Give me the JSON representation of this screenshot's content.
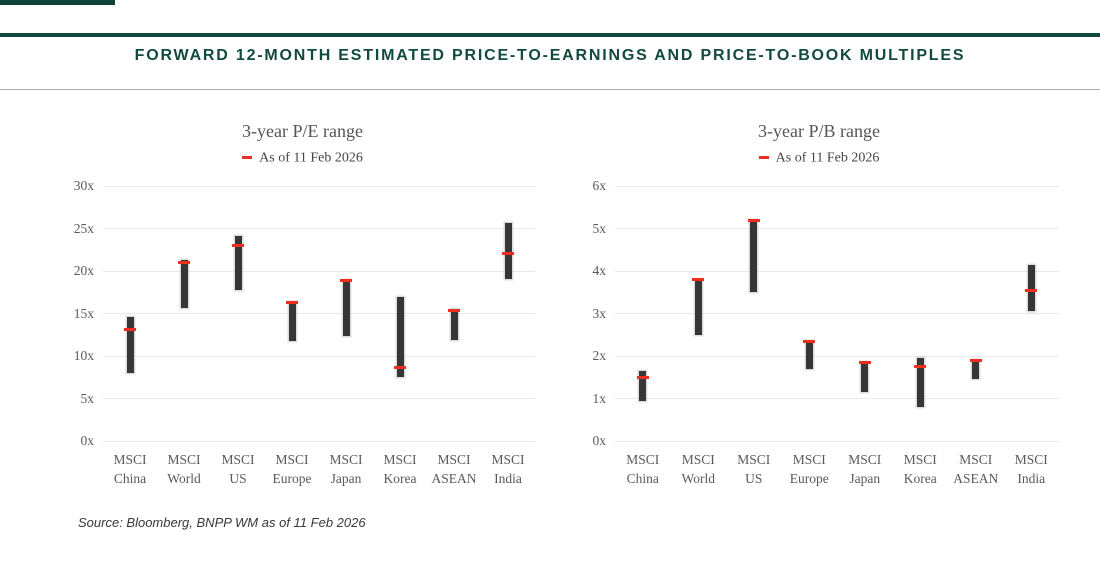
{
  "page": {
    "header_title": "FORWARD 12-MONTH ESTIMATED PRICE-TO-EARNINGS AND PRICE-TO-BOOK MULTIPLES",
    "source_note": "Source: Bloomberg, BNPP WM as of 11 Feb 2026",
    "accent_color": "#124a40",
    "marker_color": "#ee2e20",
    "bar_color": "#363636",
    "gridline_color": "#e8e8e8"
  },
  "chart_data": [
    {
      "type": "range-bar",
      "title": "3-year P/E range",
      "legend": {
        "label": "As of 11 Feb 2026",
        "marker_color": "#ee2e20",
        "position": "top"
      },
      "categories": [
        "MSCI China",
        "MSCI World",
        "MSCI US",
        "MSCI Europe",
        "MSCI Japan",
        "MSCI Korea",
        "MSCI ASEAN",
        "MSCI India"
      ],
      "ylim": [
        0,
        30
      ],
      "ytick_labels": [
        "0x",
        "5x",
        "10x",
        "15x",
        "20x",
        "25x",
        "30x"
      ],
      "grid": true,
      "range_low": [
        8.0,
        15.7,
        17.8,
        11.8,
        12.4,
        7.5,
        11.9,
        19.1
      ],
      "range_high": [
        14.6,
        21.3,
        24.1,
        16.4,
        19.0,
        16.9,
        15.5,
        25.7
      ],
      "as_of": [
        13.1,
        21.0,
        23.0,
        16.3,
        18.9,
        8.7,
        15.4,
        22.1
      ]
    },
    {
      "type": "range-bar",
      "title": "3-year P/B range",
      "legend": {
        "label": "As of 11 Feb 2026",
        "marker_color": "#ee2e20",
        "position": "top"
      },
      "categories": [
        "MSCI China",
        "MSCI World",
        "MSCI US",
        "MSCI Europe",
        "MSCI Japan",
        "MSCI Korea",
        "MSCI ASEAN",
        "MSCI India"
      ],
      "ylim": [
        0,
        6
      ],
      "ytick_labels": [
        "0x",
        "1x",
        "2x",
        "3x",
        "4x",
        "5x",
        "6x"
      ],
      "grid": true,
      "range_low": [
        0.95,
        2.5,
        3.5,
        1.7,
        1.15,
        0.8,
        1.45,
        3.05
      ],
      "range_high": [
        1.65,
        3.8,
        5.2,
        2.35,
        1.85,
        1.95,
        1.9,
        4.15
      ],
      "as_of": [
        1.5,
        3.8,
        5.2,
        2.35,
        1.85,
        1.75,
        1.9,
        3.55
      ]
    }
  ]
}
